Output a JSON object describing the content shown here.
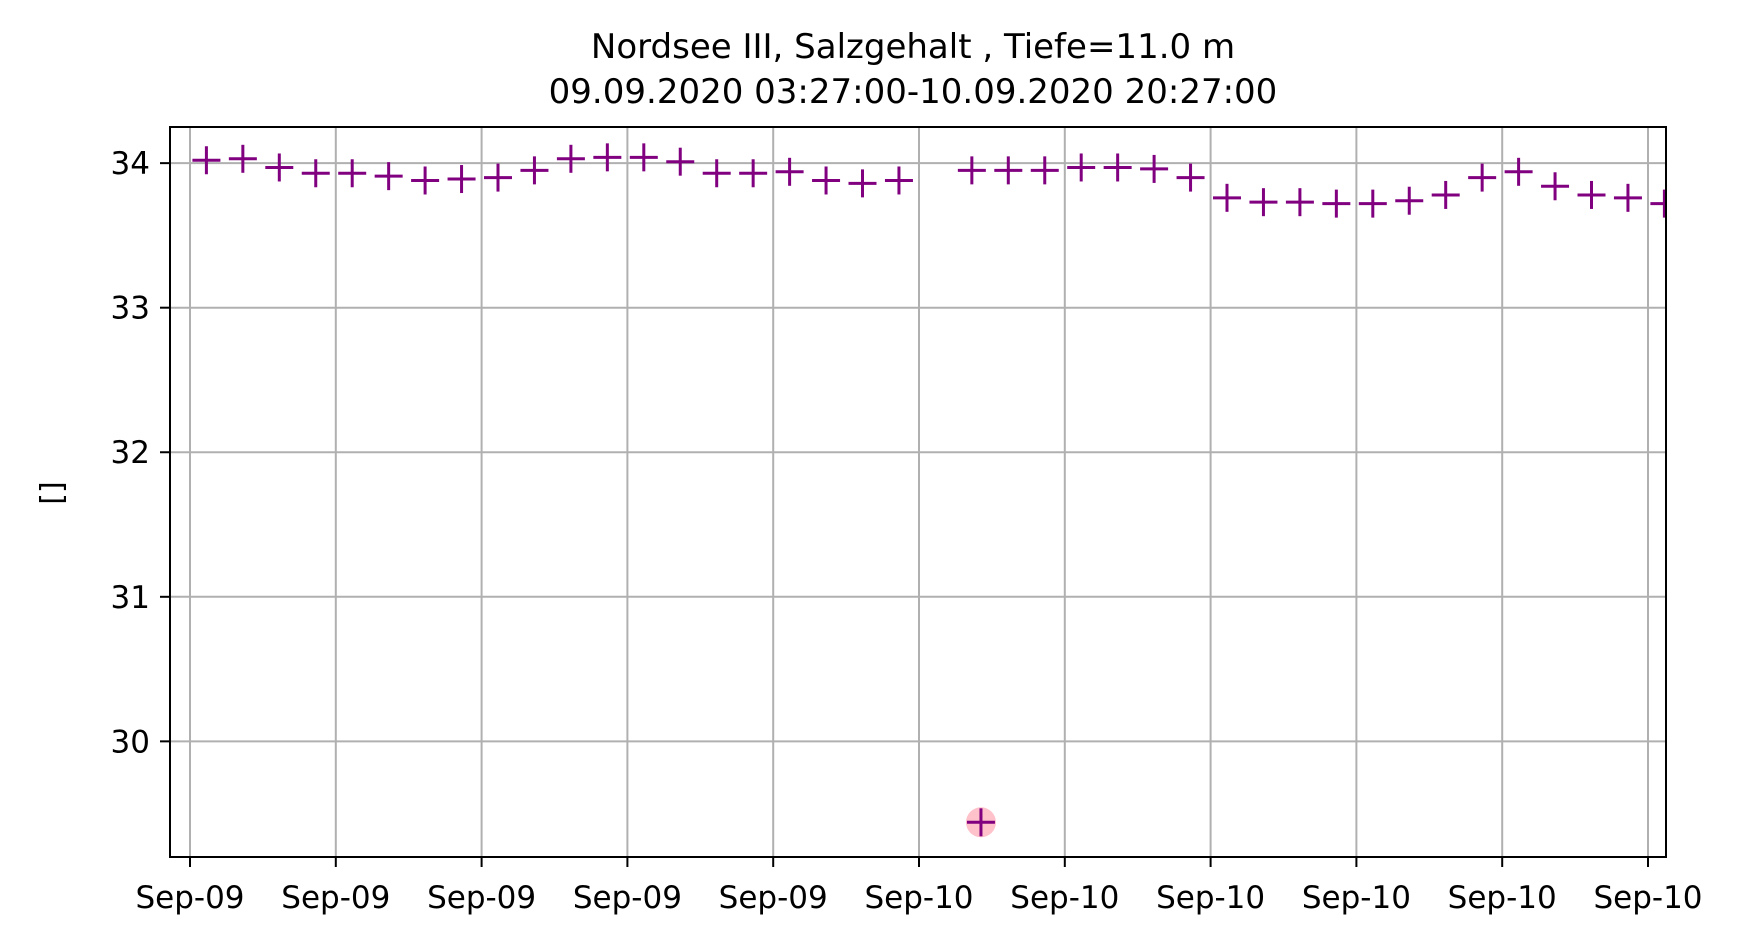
{
  "chart_data": {
    "type": "scatter",
    "title": "Nordsee III, Salzgehalt , Tiefe=11.0 m",
    "subtitle": "09.09.2020 03:27:00-10.09.2020 20:27:00",
    "xlabel": "",
    "ylabel": "[]",
    "ylim": [
      29.2,
      34.25
    ],
    "yticks": [
      30,
      31,
      32,
      33,
      34
    ],
    "xticks": [
      "Sep-09",
      "Sep-09",
      "Sep-09",
      "Sep-09",
      "Sep-09",
      "Sep-10",
      "Sep-10",
      "Sep-10",
      "Sep-10",
      "Sep-10",
      "Sep-10"
    ],
    "grid": true,
    "marker": "+",
    "marker_color": "#800080",
    "outlier_color": "#ffb6c1",
    "x_start": "09.09.2020 03:27:00",
    "x_step_minutes": 60,
    "values": [
      34.02,
      34.03,
      33.97,
      33.93,
      33.93,
      33.91,
      33.88,
      33.89,
      33.9,
      33.95,
      34.03,
      34.04,
      34.04,
      34.01,
      33.93,
      33.93,
      33.94,
      33.88,
      33.86,
      33.88,
      null,
      33.95,
      33.95,
      33.95,
      33.97,
      33.97,
      33.96,
      33.9,
      33.76,
      33.73,
      33.73,
      33.72,
      33.72,
      33.74,
      33.78,
      33.9,
      33.94,
      33.84,
      33.78,
      33.76,
      33.72,
      33.68
    ],
    "outliers": [
      {
        "time": "10.09.2020 00:42:00",
        "value": 29.44
      }
    ]
  }
}
